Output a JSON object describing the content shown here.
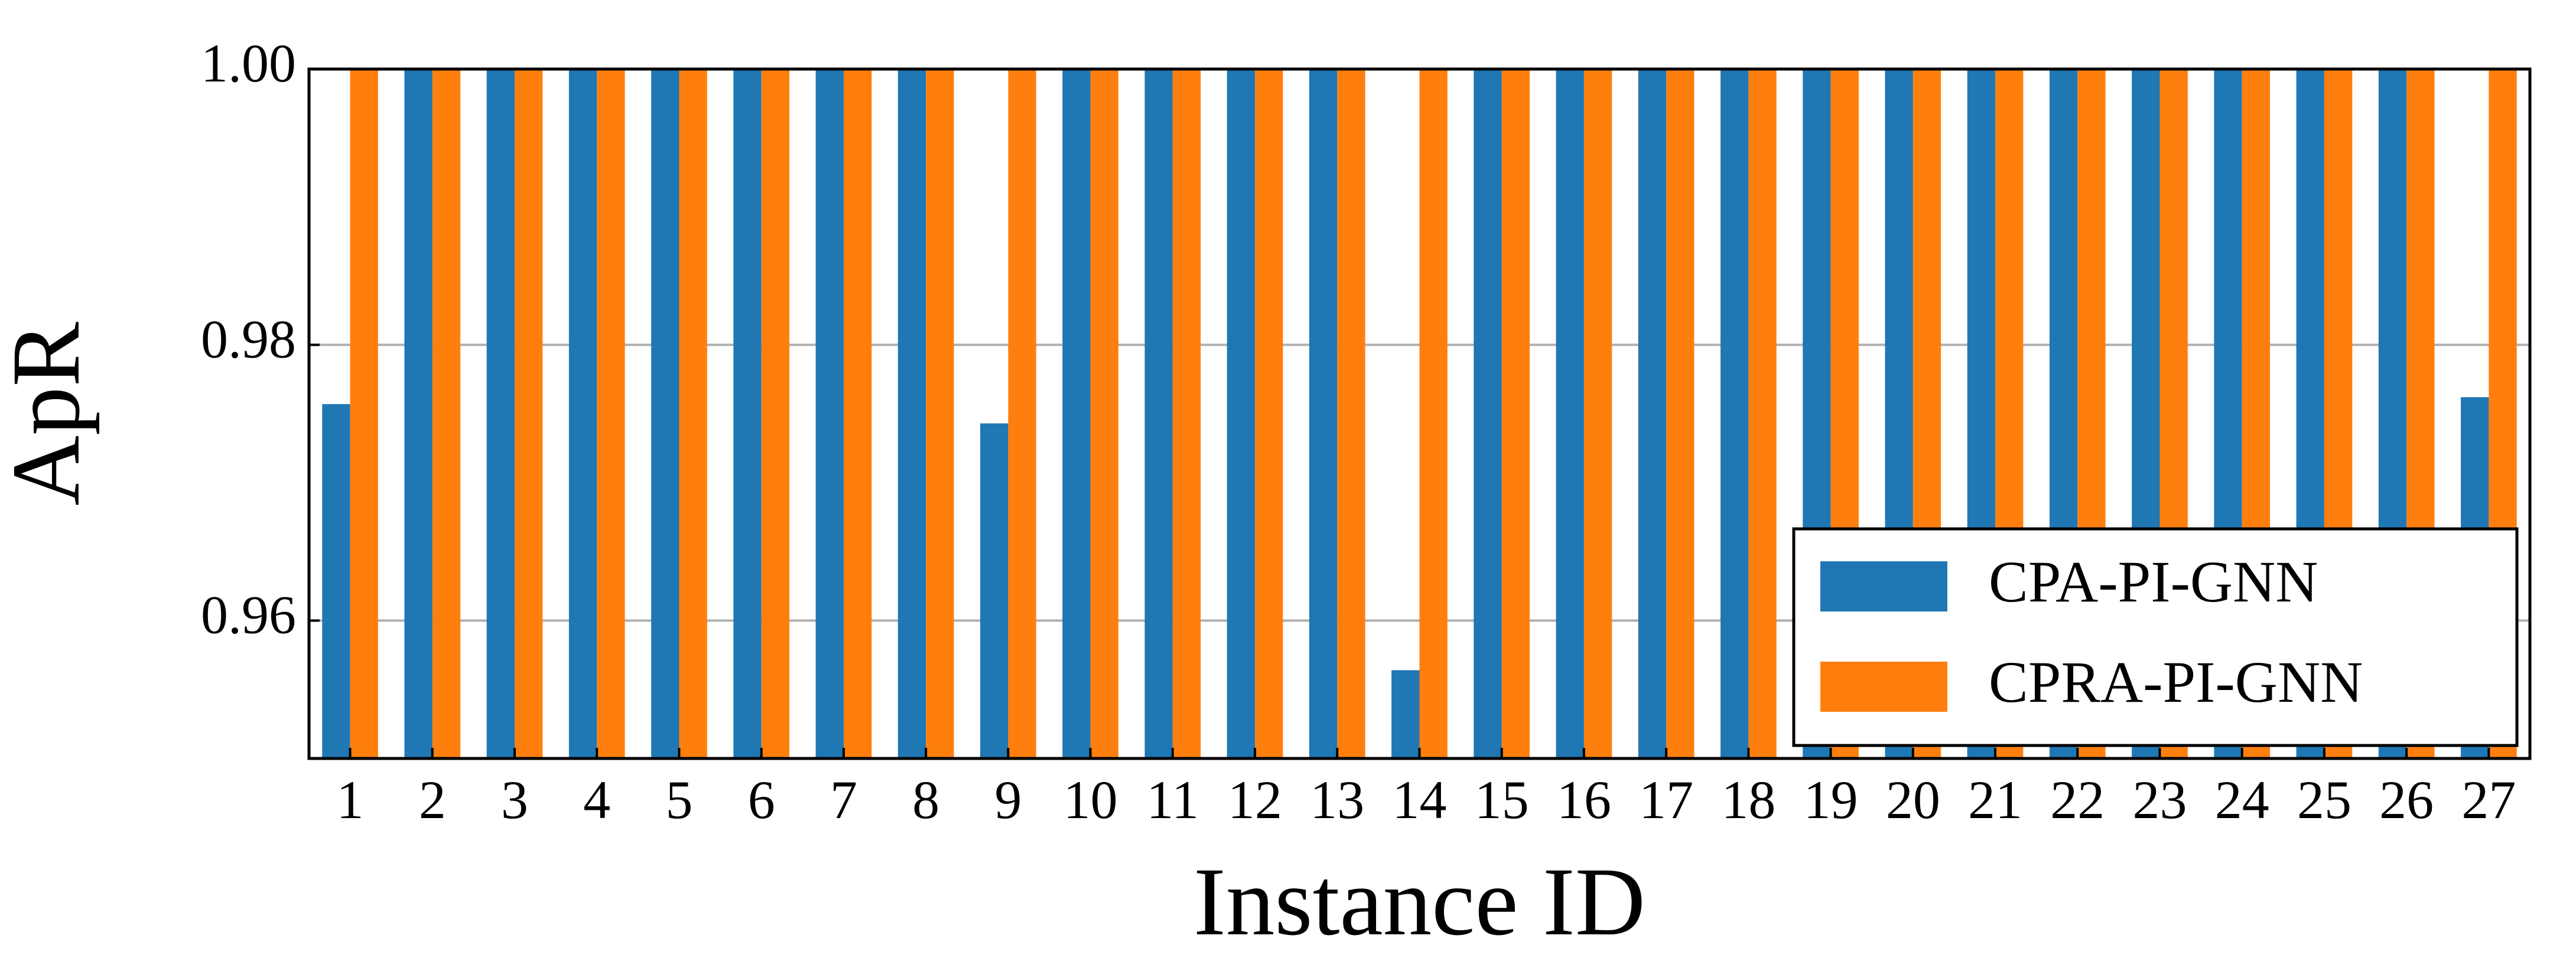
{
  "chart_data": {
    "type": "bar",
    "xlabel": "Instance ID",
    "ylabel": "ApR",
    "categories": [
      "1",
      "2",
      "3",
      "4",
      "5",
      "6",
      "7",
      "8",
      "9",
      "10",
      "11",
      "12",
      "13",
      "14",
      "15",
      "16",
      "17",
      "18",
      "19",
      "20",
      "21",
      "22",
      "23",
      "24",
      "25",
      "26",
      "27"
    ],
    "series": [
      {
        "name": "CPA-PI-GNN",
        "color": "#1f77b4",
        "values": [
          0.9757,
          1,
          1,
          1,
          1,
          1,
          1,
          1,
          0.9743,
          1,
          1,
          1,
          1,
          0.9564,
          1,
          1,
          1,
          1,
          1,
          1,
          1,
          1,
          1,
          1,
          1,
          1,
          0.9762
        ]
      },
      {
        "name": "CPRA-PI-GNN",
        "color": "#ff7f0e",
        "values": [
          1,
          1,
          1,
          1,
          1,
          1,
          1,
          1,
          1,
          1,
          1,
          1,
          1,
          1,
          1,
          1,
          1,
          1,
          1,
          1,
          1,
          1,
          1,
          1,
          1,
          1,
          1
        ]
      }
    ],
    "ylim": [
      0.95,
      1.0
    ],
    "yticks": [
      {
        "value": 0.96,
        "label": "0.96"
      },
      {
        "value": 0.98,
        "label": "0.98"
      },
      {
        "value": 1.0,
        "label": "1.00"
      }
    ],
    "grid": true,
    "legend": "lower right"
  }
}
